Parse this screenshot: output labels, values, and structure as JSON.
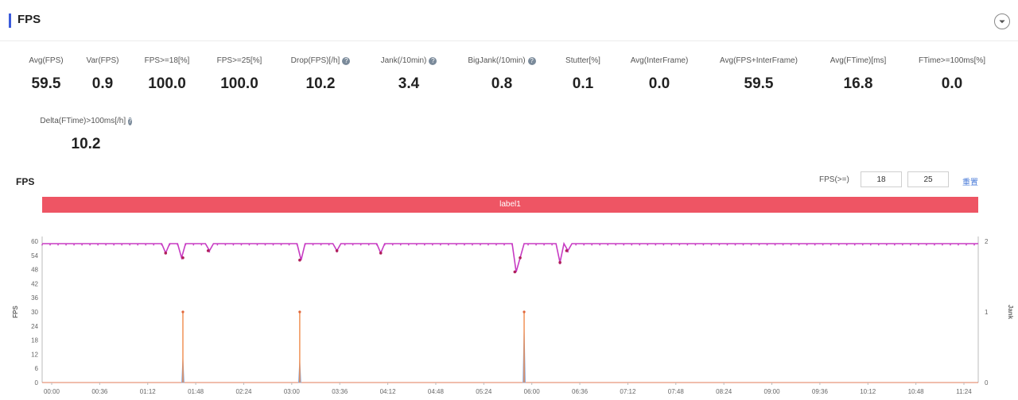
{
  "header": {
    "title": "FPS"
  },
  "metrics_row1": [
    {
      "label": "Avg(FPS)",
      "value": "59.5",
      "info": false
    },
    {
      "label": "Var(FPS)",
      "value": "0.9",
      "info": false
    },
    {
      "label": "FPS>=18[%]",
      "value": "100.0",
      "info": false
    },
    {
      "label": "FPS>=25[%]",
      "value": "100.0",
      "info": false
    },
    {
      "label": "Drop(FPS)[/h]",
      "value": "10.2",
      "info": true
    },
    {
      "label": "Jank(/10min)",
      "value": "3.4",
      "info": true
    },
    {
      "label": "BigJank(/10min)",
      "value": "0.8",
      "info": true
    },
    {
      "label": "Stutter[%]",
      "value": "0.1",
      "info": false
    },
    {
      "label": "Avg(InterFrame)",
      "value": "0.0",
      "info": false
    },
    {
      "label": "Avg(FPS+InterFrame)",
      "value": "59.5",
      "info": false
    },
    {
      "label": "Avg(FTime)[ms]",
      "value": "16.8",
      "info": false
    },
    {
      "label": "FTime>=100ms[%]",
      "value": "0.0",
      "info": false
    }
  ],
  "metrics_row2": [
    {
      "label": "Delta(FTime)>100ms[/h]",
      "value": "10.2",
      "info": true
    }
  ],
  "chart": {
    "title": "FPS",
    "fps_filter_label": "FPS(>=)",
    "threshold_low": "18",
    "threshold_high": "25",
    "reset_label": "重置",
    "label_bar_text": "label1"
  },
  "chart_data": {
    "type": "line",
    "ylabel": "FPS",
    "y2label": "Jank",
    "ylim": [
      0,
      60
    ],
    "y2lim": [
      0,
      2
    ],
    "yticks": [
      0,
      6,
      12,
      18,
      24,
      30,
      36,
      42,
      48,
      54,
      60
    ],
    "y2ticks": [
      0,
      1,
      2
    ],
    "xticks": [
      "00:00",
      "00:36",
      "01:12",
      "01:48",
      "02:24",
      "03:00",
      "03:36",
      "04:12",
      "04:48",
      "05:24",
      "06:00",
      "06:36",
      "07:12",
      "07:48",
      "08:24",
      "09:00",
      "09:36",
      "10:12",
      "10:48",
      "11:24"
    ],
    "x_range_seconds": [
      0,
      705
    ],
    "colors": {
      "fps": "#c73bc3",
      "jank": "#f08a4b",
      "bigjank": "#8ba8d8",
      "label": "#ee5564"
    },
    "fps_baseline": 59,
    "fps_dips": [
      {
        "t": 93,
        "fps": 55
      },
      {
        "t": 106,
        "fps": 53
      },
      {
        "t": 125,
        "fps": 56
      },
      {
        "t": 194,
        "fps": 52
      },
      {
        "t": 222,
        "fps": 56
      },
      {
        "t": 255,
        "fps": 55
      },
      {
        "t": 356,
        "fps": 47
      },
      {
        "t": 360,
        "fps": 53
      },
      {
        "t": 390,
        "fps": 51
      },
      {
        "t": 395,
        "fps": 56
      }
    ],
    "jank_events": [
      {
        "t": 106,
        "jank": 1
      },
      {
        "t": 194,
        "jank": 1
      },
      {
        "t": 363,
        "jank": 1
      }
    ],
    "bigjank_events": [
      {
        "t": 106,
        "value": 11
      },
      {
        "t": 194,
        "value": 10
      },
      {
        "t": 363,
        "value": 24
      }
    ]
  }
}
